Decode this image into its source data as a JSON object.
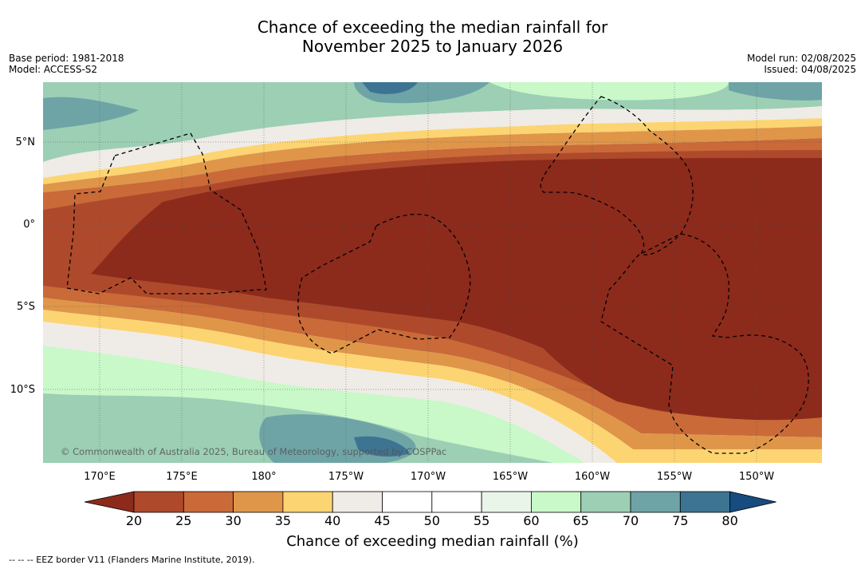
{
  "title": {
    "line1": "Chance of exceeding the median rainfall for",
    "line2": "November 2025 to January 2026"
  },
  "meta": {
    "base_period": "Base period: 1981-2018",
    "model": "Model: ACCESS-S2",
    "model_run": "Model run: 02/08/2025",
    "issued": "Issued: 04/08/2025"
  },
  "map": {
    "lat_labels": [
      "5°N",
      "0°",
      "5°S",
      "10°S"
    ],
    "lon_labels": [
      "170°E",
      "175°E",
      "180°",
      "175°W",
      "170°W",
      "165°W",
      "160°W",
      "155°W",
      "150°W"
    ],
    "copyright": "© Commonwealth of Australia 2025, Bureau of Meteorology, supported by COSPPac"
  },
  "colorbar": {
    "ticks": [
      "20",
      "25",
      "30",
      "35",
      "40",
      "45",
      "50",
      "55",
      "60",
      "65",
      "70",
      "75",
      "80"
    ],
    "colors": [
      "#8c2a1c",
      "#ae4a2b",
      "#c96a38",
      "#df9649",
      "#fcd472",
      "#efebe7",
      "#ffffff",
      "#ffffff",
      "#e9f5e8",
      "#c9f8c9",
      "#9ccfb4",
      "#6ea4a6",
      "#3d7492",
      "#164c7f"
    ],
    "label": "Chance of exceeding median rainfall (%)"
  },
  "footer": "--  --  -- EEZ border V11 (Flanders Marine Institute, 2019)."
}
